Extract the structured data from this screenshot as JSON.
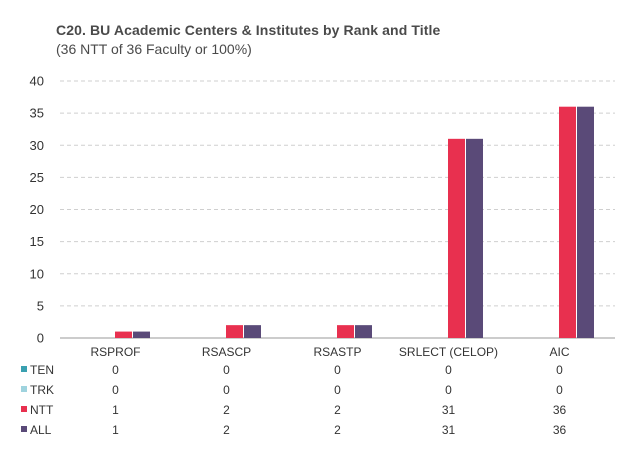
{
  "chart_data": {
    "type": "bar",
    "title": "C20. BU Academic Centers & Institutes by Rank and Title",
    "subtitle": "(36 NTT of 36 Faculty or 100%)",
    "categories": [
      "RSPROF",
      "RSASCP",
      "RSASTP",
      "SRLECT (CELOP)",
      "AIC"
    ],
    "ylim": [
      0,
      40
    ],
    "yticks": [
      0,
      5,
      10,
      15,
      20,
      25,
      30,
      35,
      40
    ],
    "grid": true,
    "legend_placement": "bottom-left (data table)",
    "series": [
      {
        "name": "TEN",
        "color": "#3aa0b0",
        "values": [
          0,
          0,
          0,
          0,
          0
        ]
      },
      {
        "name": "TRK",
        "color": "#9fd3de",
        "values": [
          0,
          0,
          0,
          0,
          0
        ]
      },
      {
        "name": "NTT",
        "color": "#e8304f",
        "values": [
          1,
          2,
          2,
          31,
          36
        ]
      },
      {
        "name": "ALL",
        "color": "#5a4a78",
        "values": [
          1,
          2,
          2,
          31,
          36
        ]
      }
    ]
  }
}
